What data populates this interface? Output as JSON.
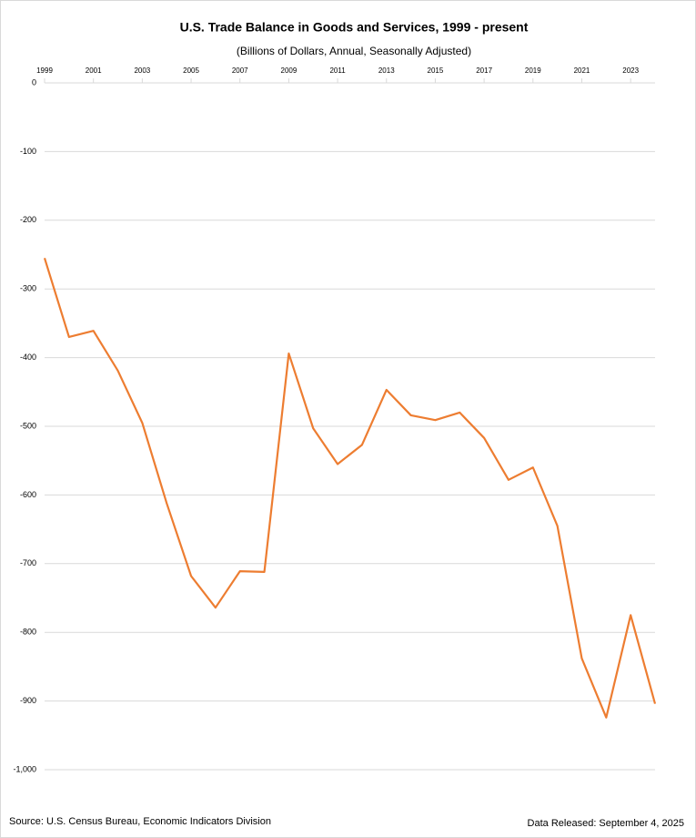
{
  "chart_data": {
    "type": "line",
    "title": "U.S. Trade Balance  in Goods and Services, 1999 - present",
    "subtitle": "(Billions of Dollars, Annual, Seasonally Adjusted)",
    "x": [
      1999,
      2000,
      2001,
      2002,
      2003,
      2004,
      2005,
      2006,
      2007,
      2008,
      2009,
      2010,
      2011,
      2012,
      2013,
      2014,
      2015,
      2016,
      2017,
      2018,
      2019,
      2020,
      2021,
      2022,
      2023,
      2024
    ],
    "series": [
      {
        "name": "Trade Balance",
        "color": "#ed7d31",
        "values": [
          -255,
          -370,
          -361,
          -419,
          -495,
          -612,
          -718,
          -764,
          -711,
          -712,
          -394,
          -503,
          -555,
          -527,
          -447,
          -484,
          -491,
          -480,
          -517,
          -578,
          -560,
          -645,
          -838,
          -924,
          -775,
          -904
        ]
      }
    ],
    "xlim": [
      1999,
      2024
    ],
    "xticks": [
      1999,
      2001,
      2003,
      2005,
      2007,
      2009,
      2011,
      2013,
      2015,
      2017,
      2019,
      2021,
      2023
    ],
    "ylim": [
      -1000,
      0
    ],
    "yticks": [
      0,
      -100,
      -200,
      -300,
      -400,
      -500,
      -600,
      -700,
      -800,
      -900,
      {
        "value": -1000,
        "label": "-1,000"
      }
    ],
    "grid": true,
    "source": "Source: U.S. Census Bureau, Economic Indicators Division",
    "release": "Data Released: September 4, 2025"
  }
}
